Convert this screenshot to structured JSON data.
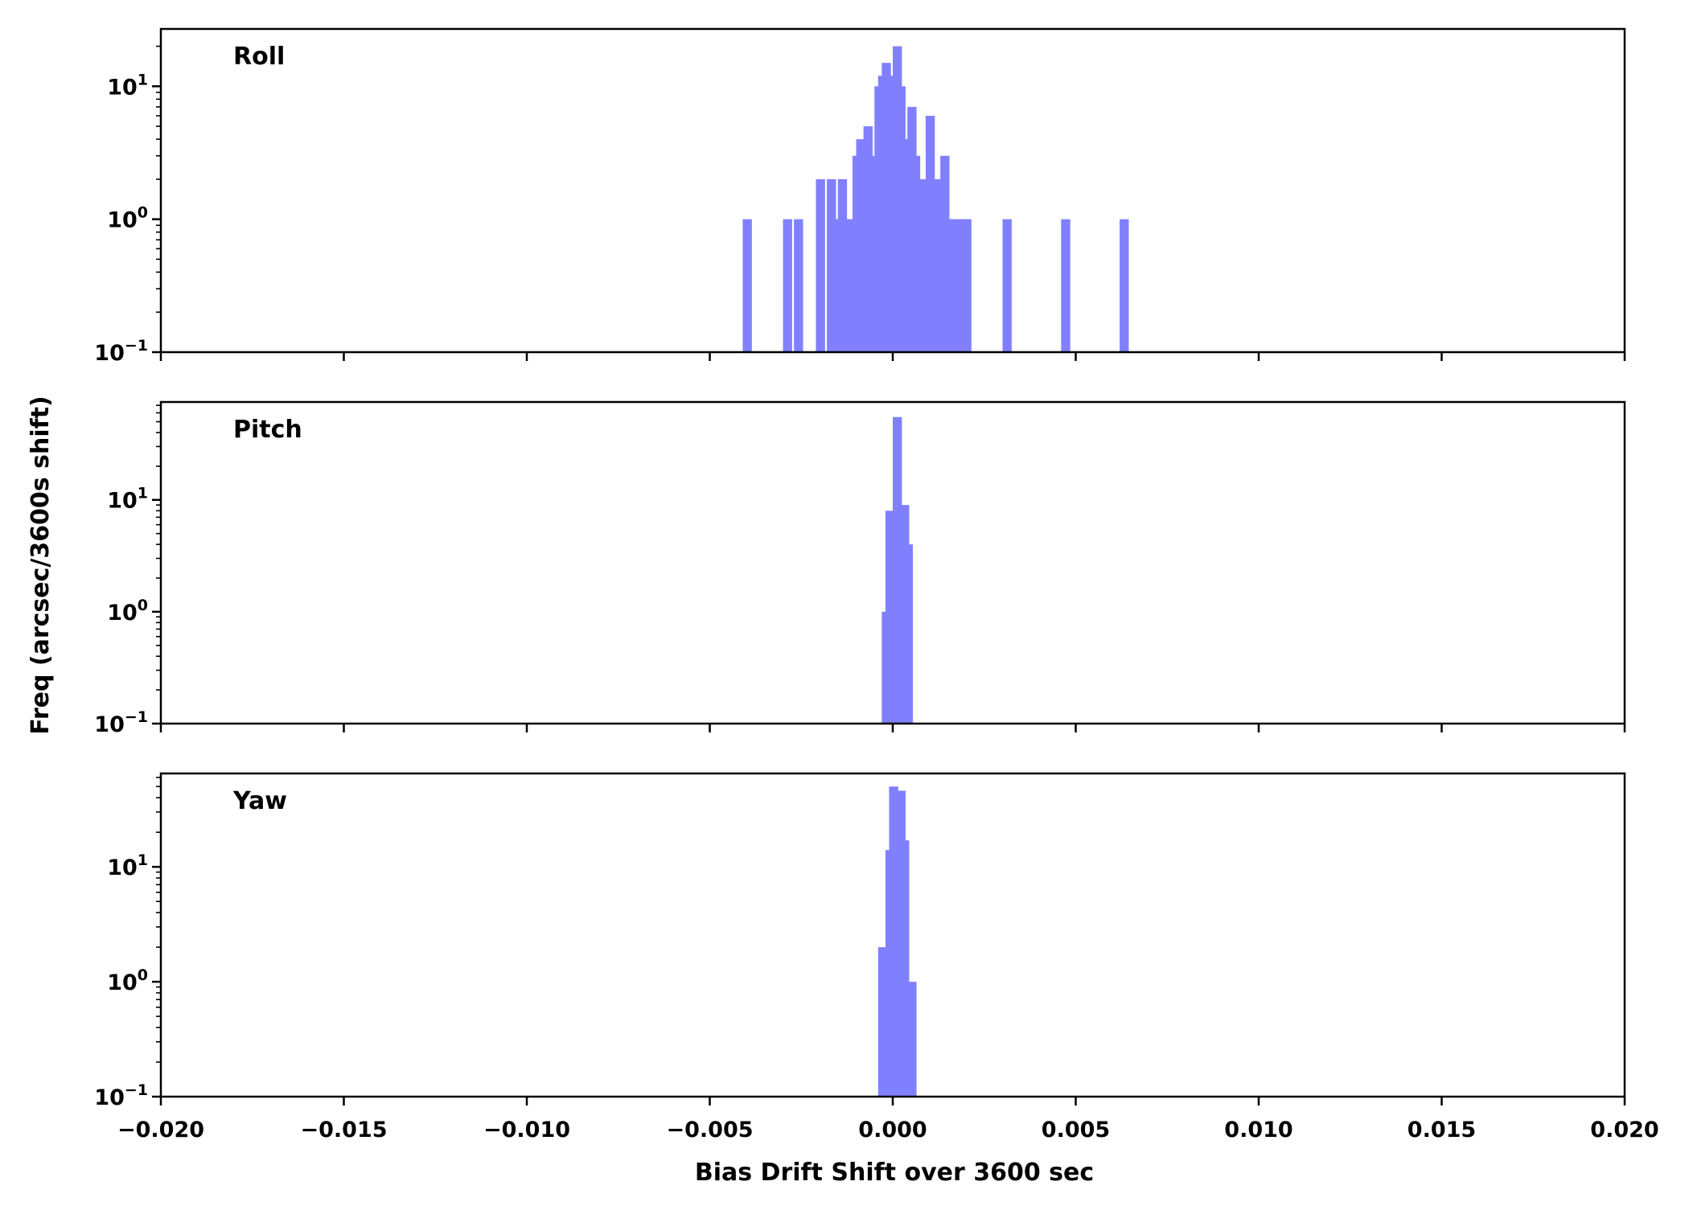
{
  "chart_data": {
    "type": "bar",
    "xlabel": "Bias Drift Shift over 3600 sec",
    "ylabel": "Freq (arcsec/3600s shift)",
    "xlim": [
      -0.02,
      0.02
    ],
    "x_ticks": [
      "−0.020",
      "−0.015",
      "−0.010",
      "−0.005",
      "0.000",
      "0.005",
      "0.010",
      "0.015",
      "0.020"
    ],
    "x_tick_values": [
      -0.02,
      -0.015,
      -0.01,
      -0.005,
      0.0,
      0.005,
      0.01,
      0.015,
      0.02
    ],
    "yscale": "log",
    "bin_width": 0.00025,
    "panels": [
      {
        "label": "Roll",
        "ylim": [
          0.1,
          27
        ],
        "y_ticks": [
          {
            "base": "10",
            "exp": "−1",
            "value": 0.1
          },
          {
            "base": "10",
            "exp": "0",
            "value": 1
          },
          {
            "base": "10",
            "exp": "1",
            "value": 10
          }
        ],
        "bins": [
          {
            "x": -0.0041,
            "count": 1
          },
          {
            "x": -0.003,
            "count": 1
          },
          {
            "x": -0.0027,
            "count": 1
          },
          {
            "x": -0.0021,
            "count": 2
          },
          {
            "x": -0.0018,
            "count": 2
          },
          {
            "x": -0.0016,
            "count": 1
          },
          {
            "x": -0.0015,
            "count": 2
          },
          {
            "x": -0.0014,
            "count": 1
          },
          {
            "x": -0.0013,
            "count": 1
          },
          {
            "x": -0.0011,
            "count": 3
          },
          {
            "x": -0.001,
            "count": 4
          },
          {
            "x": -0.0008,
            "count": 5
          },
          {
            "x": -0.0007,
            "count": 3
          },
          {
            "x": -0.0005,
            "count": 10
          },
          {
            "x": -0.0004,
            "count": 12
          },
          {
            "x": -0.0003,
            "count": 15
          },
          {
            "x": -0.0001,
            "count": 12
          },
          {
            "x": 0.0,
            "count": 20
          },
          {
            "x": 0.0001,
            "count": 10
          },
          {
            "x": 0.0003,
            "count": 4
          },
          {
            "x": 0.0004,
            "count": 7
          },
          {
            "x": 0.0005,
            "count": 3
          },
          {
            "x": 0.0007,
            "count": 2
          },
          {
            "x": 0.0008,
            "count": 2
          },
          {
            "x": 0.0009,
            "count": 6
          },
          {
            "x": 0.001,
            "count": 2
          },
          {
            "x": 0.0011,
            "count": 2
          },
          {
            "x": 0.0013,
            "count": 3
          },
          {
            "x": 0.0014,
            "count": 1
          },
          {
            "x": 0.0015,
            "count": 1
          },
          {
            "x": 0.0017,
            "count": 1
          },
          {
            "x": 0.0018,
            "count": 1
          },
          {
            "x": 0.0019,
            "count": 1
          },
          {
            "x": 0.003,
            "count": 1
          },
          {
            "x": 0.0046,
            "count": 1
          },
          {
            "x": 0.0062,
            "count": 1
          }
        ]
      },
      {
        "label": "Pitch",
        "ylim": [
          0.1,
          75
        ],
        "y_ticks": [
          {
            "base": "10",
            "exp": "−1",
            "value": 0.1
          },
          {
            "base": "10",
            "exp": "0",
            "value": 1
          },
          {
            "base": "10",
            "exp": "1",
            "value": 10
          }
        ],
        "bins": [
          {
            "x": -0.0003,
            "count": 1
          },
          {
            "x": -0.0002,
            "count": 8
          },
          {
            "x": 0.0,
            "count": 55
          },
          {
            "x": 0.0002,
            "count": 9
          },
          {
            "x": 0.0003,
            "count": 4
          }
        ]
      },
      {
        "label": "Yaw",
        "ylim": [
          0.1,
          65
        ],
        "y_ticks": [
          {
            "base": "10",
            "exp": "−1",
            "value": 0.1
          },
          {
            "base": "10",
            "exp": "0",
            "value": 1
          },
          {
            "base": "10",
            "exp": "1",
            "value": 10
          }
        ],
        "bins": [
          {
            "x": -0.0004,
            "count": 2
          },
          {
            "x": -0.0002,
            "count": 14
          },
          {
            "x": -0.0001,
            "count": 50
          },
          {
            "x": 0.0001,
            "count": 46
          },
          {
            "x": 0.0002,
            "count": 17
          },
          {
            "x": 0.0004,
            "count": 1
          }
        ]
      }
    ]
  }
}
